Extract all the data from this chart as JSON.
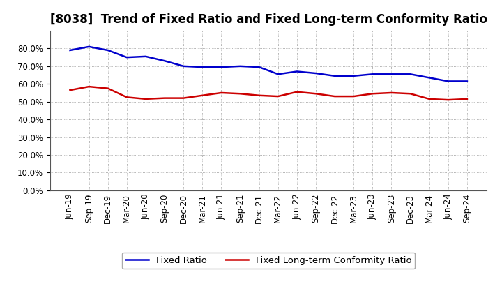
{
  "title": "[8038]  Trend of Fixed Ratio and Fixed Long-term Conformity Ratio",
  "x_labels": [
    "Jun-19",
    "Sep-19",
    "Dec-19",
    "Mar-20",
    "Jun-20",
    "Sep-20",
    "Dec-20",
    "Mar-21",
    "Jun-21",
    "Sep-21",
    "Dec-21",
    "Mar-22",
    "Jun-22",
    "Sep-22",
    "Dec-22",
    "Mar-23",
    "Jun-23",
    "Sep-23",
    "Dec-23",
    "Mar-24",
    "Jun-24",
    "Sep-24"
  ],
  "fixed_ratio": [
    79.0,
    81.0,
    79.0,
    75.0,
    75.5,
    73.0,
    70.0,
    69.5,
    69.5,
    70.0,
    69.5,
    65.5,
    67.0,
    66.0,
    64.5,
    64.5,
    65.5,
    65.5,
    65.5,
    63.5,
    61.5,
    61.5
  ],
  "fixed_lt_conformity": [
    56.5,
    58.5,
    57.5,
    52.5,
    51.5,
    52.0,
    52.0,
    53.5,
    55.0,
    54.5,
    53.5,
    53.0,
    55.5,
    54.5,
    53.0,
    53.0,
    54.5,
    55.0,
    54.5,
    51.5,
    51.0,
    51.5
  ],
  "fixed_ratio_color": "#0000CC",
  "fixed_lt_conformity_color": "#CC0000",
  "ylim": [
    0,
    90
  ],
  "yticks": [
    0,
    10,
    20,
    30,
    40,
    50,
    60,
    70,
    80
  ],
  "background_color": "#FFFFFF",
  "grid_color": "#999999",
  "legend_fixed_ratio": "Fixed Ratio",
  "legend_fixed_lt": "Fixed Long-term Conformity Ratio",
  "title_fontsize": 12,
  "axis_fontsize": 8.5,
  "legend_fontsize": 9.5
}
